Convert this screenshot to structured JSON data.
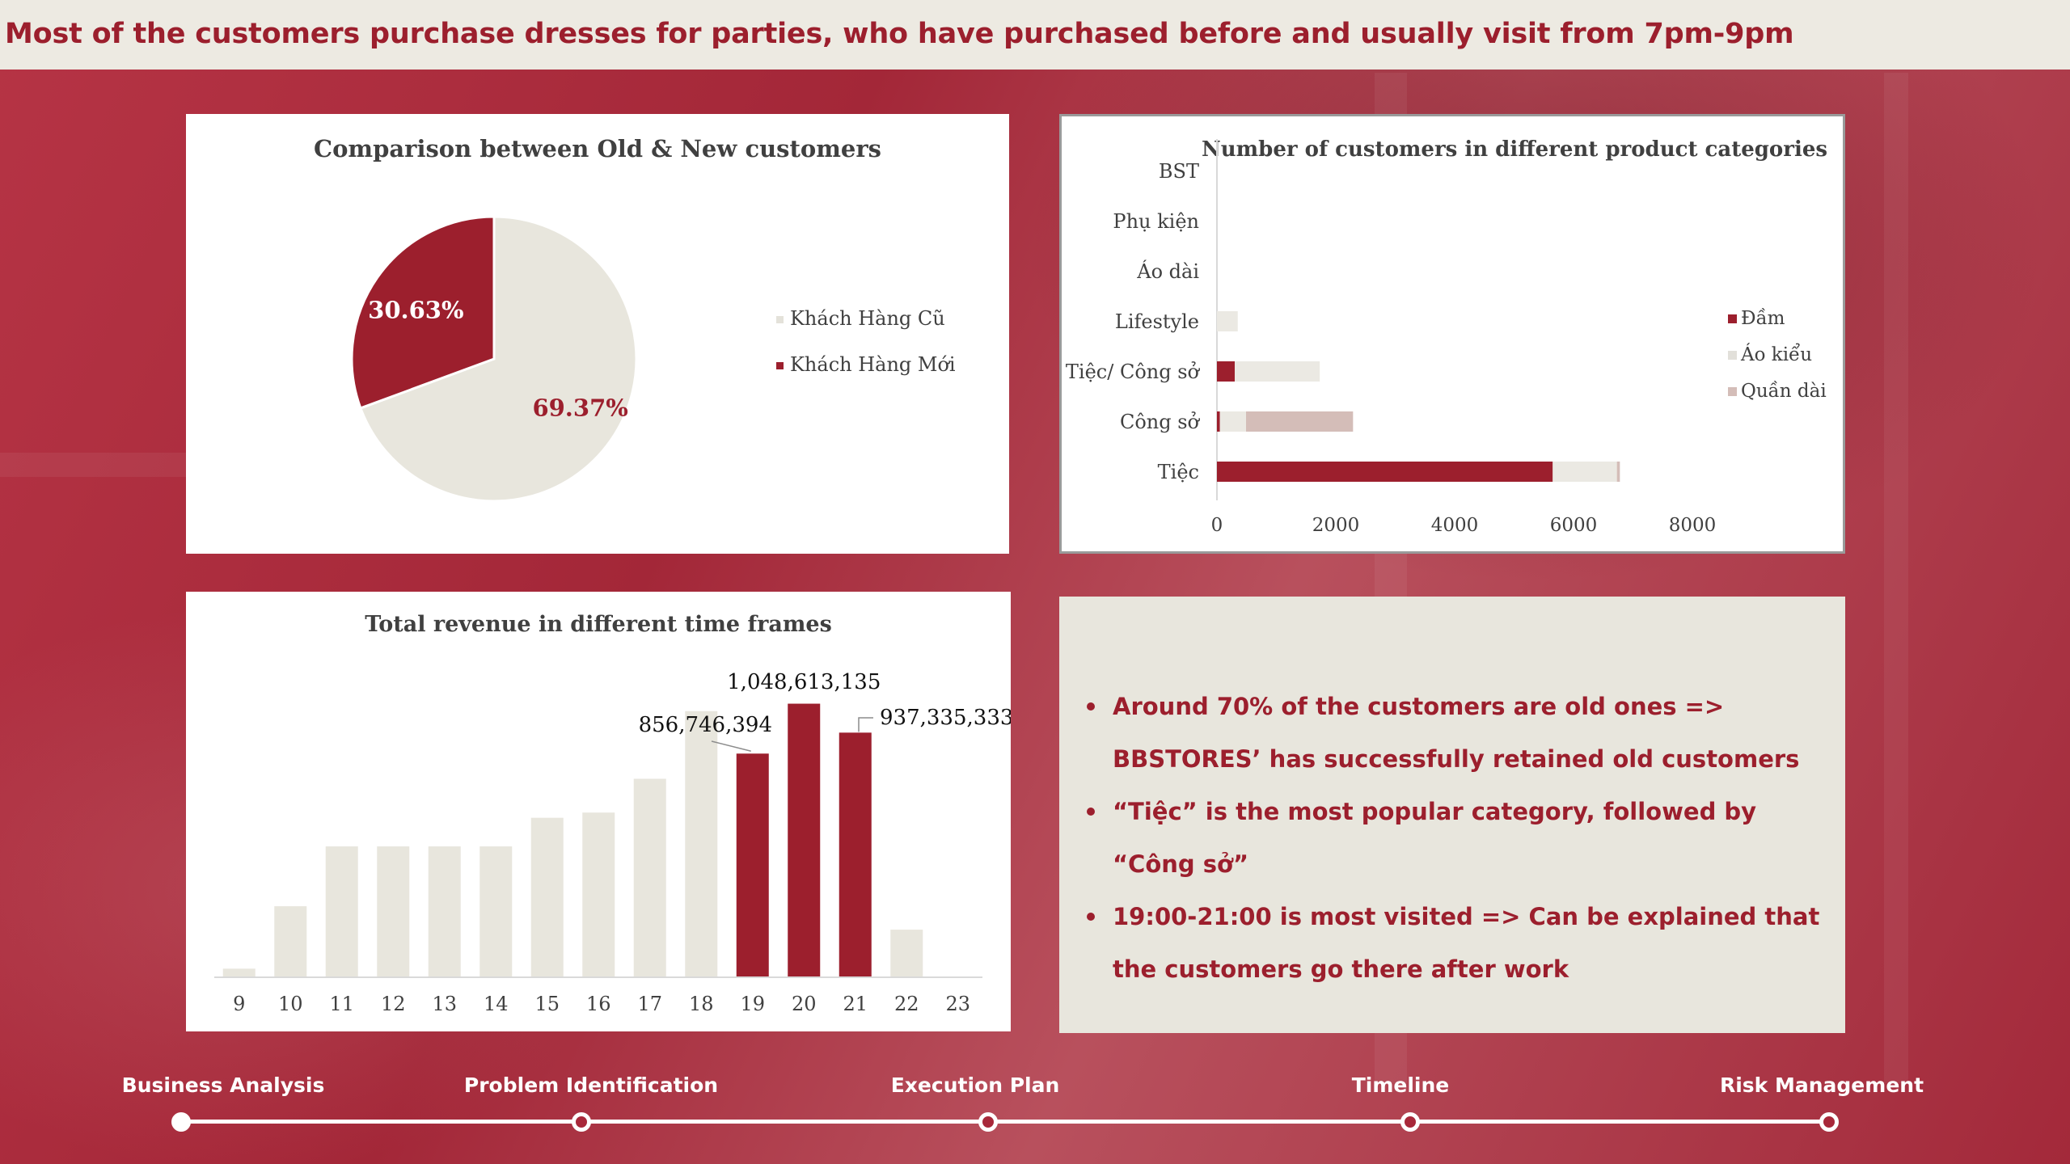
{
  "header": {
    "title": "Most of the customers purchase dresses for parties, who have purchased before and usually visit from 7pm-9pm"
  },
  "chart_data": [
    {
      "type": "pie",
      "title": "Comparison between Old & New customers",
      "slices": [
        {
          "name": "Khách Hàng Cũ",
          "value": 69.37,
          "label": "69.37%",
          "color": "#e8e6dd"
        },
        {
          "name": "Khách Hàng Mới",
          "value": 30.63,
          "label": "30.63%",
          "color": "#9c1f2d"
        }
      ],
      "legend_position": "right"
    },
    {
      "type": "bar",
      "orientation": "horizontal",
      "stacked": true,
      "title": "Number of customers in different product categories",
      "categories": [
        "BST",
        "Phụ kiện",
        "Áo dài",
        "Lifestyle",
        "Tiệc/ Công sở",
        "Công sở",
        "Tiệc"
      ],
      "series": [
        {
          "name": "Đầm",
          "color": "#9c1f2d",
          "values": [
            0,
            0,
            0,
            0,
            300,
            50,
            5650
          ]
        },
        {
          "name": "Áo kiểu",
          "color": "#ebe9e3",
          "values": [
            0,
            0,
            0,
            350,
            1430,
            440,
            1080
          ]
        },
        {
          "name": "Quần dài",
          "color": "#d4bdb8",
          "values": [
            0,
            0,
            0,
            0,
            0,
            1800,
            50
          ]
        }
      ],
      "xticks": [
        "0",
        "2000",
        "4000",
        "6000",
        "8000"
      ],
      "xlim": [
        0,
        8000
      ],
      "grid": false,
      "legend_position": "right"
    },
    {
      "type": "bar",
      "title": "Total revenue in different time frames",
      "categories": [
        "9",
        "10",
        "11",
        "12",
        "13",
        "14",
        "15",
        "16",
        "17",
        "18",
        "19",
        "20",
        "21",
        "22",
        "23"
      ],
      "values": [
        30000000,
        270000000,
        500000000,
        500000000,
        500000000,
        500000000,
        610000000,
        630000000,
        760000000,
        1020000000,
        856746394,
        1048613135,
        937335333,
        180000000,
        0
      ],
      "highlight": [
        "19",
        "20",
        "21"
      ],
      "highlight_color": "#9c1f2d",
      "base_color": "#e8e6dd",
      "data_labels": [
        {
          "category": "19",
          "text": "856,746,394"
        },
        {
          "category": "20",
          "text": "1,048,613,135"
        },
        {
          "category": "21",
          "text": "937,335,333"
        }
      ],
      "ylim": [
        0,
        1100000000
      ],
      "grid": false
    }
  ],
  "insights": {
    "items": [
      "Around 70% of the customers are old ones => BBSTORES’ has successfully retained old customers",
      "“Tiệc” is the most popular category, followed by “Công sở”",
      "19:00-21:00 is most visited => Can be explained that the customers go there after work"
    ]
  },
  "timeline": {
    "items": [
      {
        "label": "Business Analysis",
        "active": true
      },
      {
        "label": "Problem Identification",
        "active": false
      },
      {
        "label": "Execution Plan",
        "active": false
      },
      {
        "label": "Timeline",
        "active": false
      },
      {
        "label": "Risk Management",
        "active": false
      }
    ]
  },
  "colors": {
    "brand": "#9c1f2d",
    "background": "#a8283a",
    "header_bg": "#edeae2",
    "neutral": "#e8e6dd"
  }
}
